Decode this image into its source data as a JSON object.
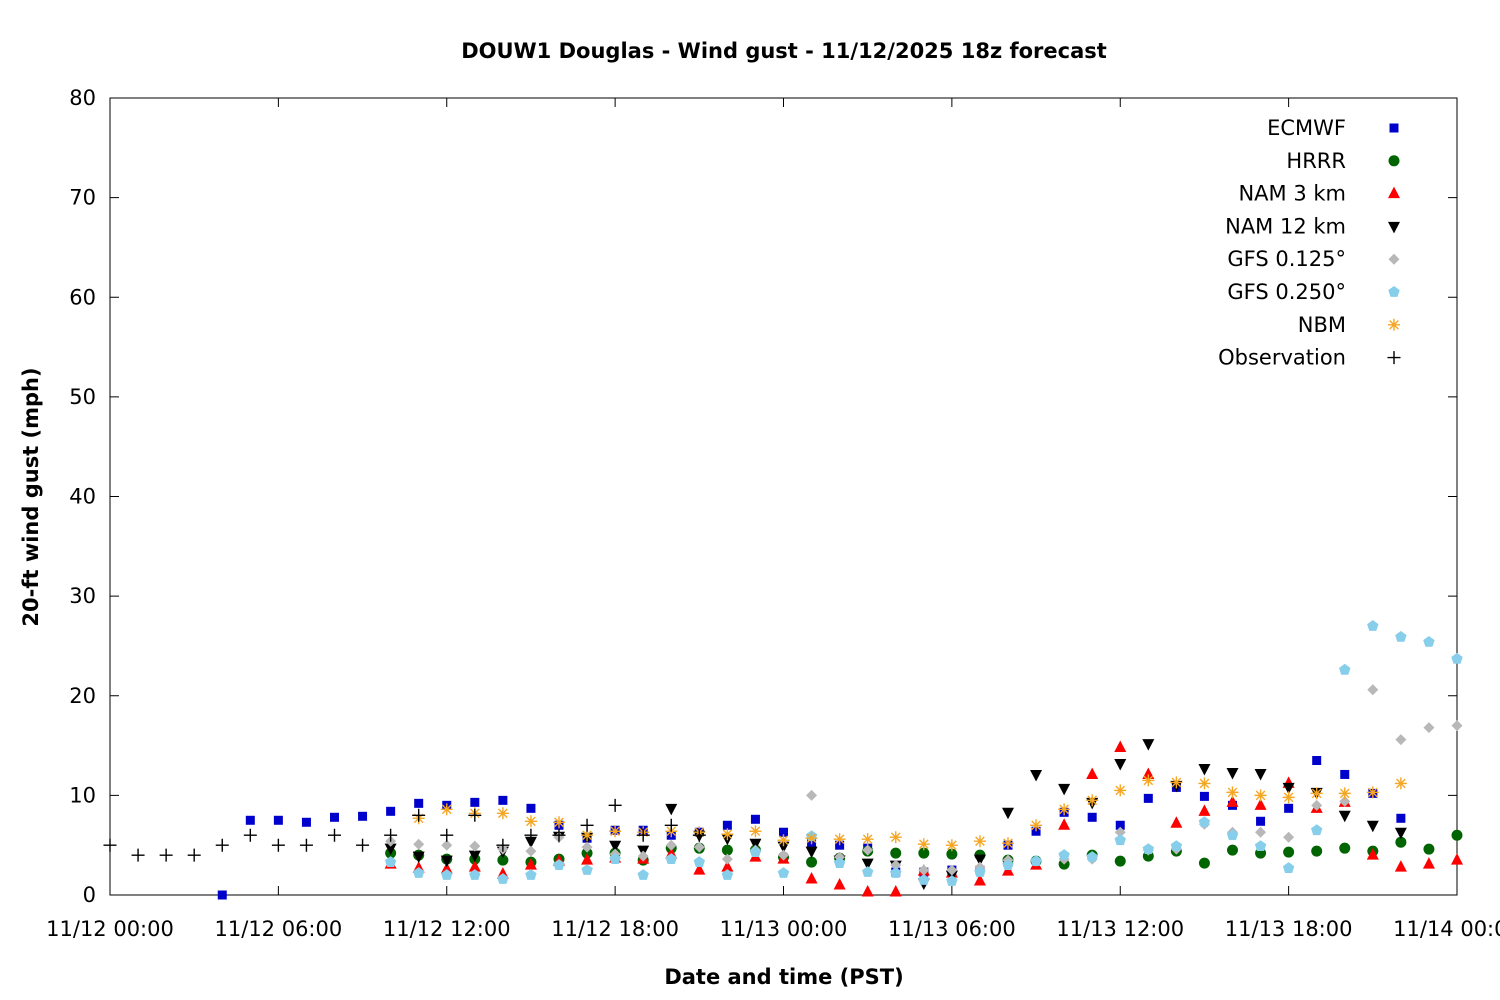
{
  "chart_data": {
    "type": "scatter",
    "title": "DOUW1 Douglas - Wind gust - 11/12/2025 18z forecast",
    "xlabel": "Date and time (PST)",
    "ylabel": "20-ft wind gust (mph)",
    "xlim": [
      "11/12 00:00",
      "11/14 00:00"
    ],
    "ylim": [
      0,
      80
    ],
    "x_ticks": [
      "11/12 00:00",
      "11/12 06:00",
      "11/12 12:00",
      "11/12 18:00",
      "11/13 00:00",
      "11/13 06:00",
      "11/13 12:00",
      "11/13 18:00",
      "11/14 00:00"
    ],
    "y_ticks": [
      0,
      10,
      20,
      30,
      40,
      50,
      60,
      70,
      80
    ],
    "grid": false,
    "legend_position": "top-right",
    "x_unit": "hours after 11/12 00:00 PST",
    "series": [
      {
        "name": "ECMWF",
        "marker": "square",
        "color": "#0000cc",
        "x": [
          4,
          5,
          6,
          7,
          8,
          9,
          10,
          11,
          12,
          13,
          14,
          15,
          16,
          17,
          18,
          19,
          20,
          21,
          22,
          23,
          24,
          25,
          26,
          27,
          28,
          29,
          30,
          31,
          32,
          33,
          34,
          35,
          36,
          37,
          38,
          39,
          40,
          41,
          42,
          43,
          44,
          45,
          46,
          47,
          48
        ],
        "y": [
          0.0,
          7.5,
          7.5,
          7.3,
          7.8,
          7.9,
          8.4,
          9.2,
          9.0,
          9.3,
          9.5,
          8.7,
          7.0,
          5.7,
          6.5,
          6.5,
          6.0,
          6.3,
          7.0,
          7.6,
          6.3,
          5.2,
          5.0,
          4.7,
          2.3,
          2.3,
          2.5,
          2.5,
          5.0,
          6.4,
          8.3,
          7.8,
          7.0,
          9.7,
          10.8,
          9.9,
          9.0,
          7.4,
          8.7,
          13.5,
          12.1,
          10.2,
          7.7,
          null,
          null
        ]
      },
      {
        "name": "HRRR",
        "marker": "circle",
        "color": "#006400",
        "x": [
          10,
          11,
          12,
          13,
          14,
          15,
          16,
          17,
          18,
          19,
          20,
          21,
          22,
          23,
          24,
          25,
          26,
          27,
          28,
          29,
          30,
          31,
          32,
          33,
          34,
          35,
          36,
          37,
          38,
          39,
          40,
          41,
          42,
          43,
          44,
          45,
          46,
          47,
          48
        ],
        "y": [
          4.2,
          4.0,
          3.6,
          3.6,
          3.5,
          3.3,
          3.6,
          4.2,
          4.2,
          3.5,
          4.7,
          4.7,
          4.5,
          4.5,
          3.8,
          3.3,
          3.7,
          4.4,
          4.2,
          4.2,
          4.1,
          4.0,
          3.5,
          3.4,
          3.1,
          4.0,
          3.4,
          3.9,
          4.4,
          3.2,
          4.5,
          4.2,
          4.3,
          4.4,
          4.7,
          4.4,
          5.3,
          4.6,
          6.0
        ]
      },
      {
        "name": "NAM 3 km",
        "marker": "triangle-up",
        "color": "#ff0000",
        "x": [
          10,
          11,
          12,
          13,
          14,
          15,
          16,
          17,
          18,
          19,
          20,
          21,
          22,
          23,
          24,
          25,
          26,
          27,
          28,
          29,
          30,
          31,
          32,
          33,
          34,
          35,
          36,
          37,
          38,
          39,
          40,
          41,
          42,
          43,
          44,
          45,
          46,
          47,
          48
        ],
        "y": [
          3.1,
          2.7,
          2.6,
          2.8,
          2.1,
          3.0,
          3.4,
          3.5,
          3.7,
          3.6,
          4.1,
          2.5,
          2.8,
          3.8,
          3.6,
          1.6,
          1.0,
          0.3,
          0.3,
          2.4,
          2.2,
          1.4,
          2.4,
          3.0,
          7.0,
          12.1,
          14.8,
          12.1,
          7.2,
          8.4,
          9.3,
          9.0,
          11.2,
          8.7,
          9.3,
          4.0,
          2.8,
          3.1,
          3.5
        ]
      },
      {
        "name": "NAM 12 km",
        "marker": "triangle-down",
        "color": "#000000",
        "x": [
          10,
          11,
          12,
          13,
          14,
          15,
          16,
          17,
          18,
          19,
          20,
          21,
          22,
          23,
          24,
          25,
          26,
          27,
          28,
          29,
          30,
          31,
          32,
          33,
          34,
          35,
          36,
          37,
          38,
          39,
          40,
          41,
          42,
          43,
          44,
          45,
          46,
          47,
          48
        ],
        "y": [
          4.7,
          3.9,
          3.5,
          4.0,
          4.4,
          5.4,
          5.9,
          5.8,
          5.0,
          4.5,
          8.7,
          6.0,
          5.7,
          5.2,
          4.9,
          4.4,
          3.5,
          3.2,
          3.0,
          1.2,
          2.0,
          3.6,
          8.3,
          12.1,
          10.7,
          9.3,
          13.2,
          15.2,
          11.0,
          12.7,
          12.3,
          12.2,
          10.8,
          10.3,
          8.0,
          7.0,
          6.3,
          null,
          null
        ]
      },
      {
        "name": "GFS 0.125°",
        "marker": "diamond",
        "color": "#b8b8b8",
        "x": [
          10,
          11,
          12,
          13,
          14,
          15,
          16,
          17,
          18,
          19,
          20,
          21,
          22,
          23,
          24,
          25,
          26,
          27,
          28,
          29,
          30,
          31,
          32,
          33,
          34,
          35,
          36,
          37,
          38,
          39,
          40,
          41,
          42,
          43,
          44,
          45,
          46,
          47,
          48
        ],
        "y": [
          5.4,
          5.1,
          5.0,
          4.9,
          4.6,
          4.4,
          5.8,
          4.8,
          4.1,
          3.9,
          5.0,
          4.8,
          3.6,
          4.5,
          4.0,
          10.0,
          3.8,
          4.5,
          3.0,
          2.5,
          2.5,
          2.8,
          3.5,
          3.4,
          3.6,
          3.6,
          6.3,
          4.5,
          4.6,
          7.1,
          6.3,
          6.3,
          5.8,
          9.0,
          9.4,
          20.6,
          15.6,
          16.8,
          17.0
        ]
      },
      {
        "name": "GFS 0.250°",
        "marker": "pentagon",
        "color": "#87ceeb",
        "x": [
          10,
          11,
          12,
          13,
          14,
          15,
          16,
          17,
          18,
          19,
          20,
          21,
          22,
          23,
          24,
          25,
          26,
          27,
          28,
          29,
          30,
          31,
          32,
          33,
          34,
          35,
          36,
          37,
          38,
          39,
          40,
          41,
          42,
          43,
          44,
          45,
          46,
          47,
          48
        ],
        "y": [
          3.3,
          2.2,
          2.0,
          2.0,
          1.6,
          2.0,
          3.0,
          2.5,
          3.6,
          2.0,
          3.6,
          3.3,
          2.0,
          4.3,
          2.2,
          5.9,
          3.2,
          2.3,
          2.2,
          1.5,
          1.4,
          2.3,
          3.0,
          3.4,
          4.0,
          3.8,
          5.5,
          4.6,
          4.9,
          7.3,
          6.0,
          4.9,
          2.7,
          6.5,
          22.6,
          27.0,
          25.9,
          25.4,
          23.7
        ]
      },
      {
        "name": "NBM",
        "marker": "star",
        "color": "#f5a623",
        "x": [
          11,
          12,
          13,
          14,
          15,
          16,
          17,
          18,
          19,
          20,
          21,
          22,
          23,
          24,
          25,
          26,
          27,
          28,
          29,
          30,
          31,
          32,
          33,
          34,
          35,
          36,
          37,
          38,
          39,
          40,
          41,
          42,
          43,
          44,
          45,
          46
        ],
        "y": [
          7.7,
          8.6,
          8.2,
          8.2,
          7.4,
          7.3,
          6.0,
          6.4,
          6.3,
          6.4,
          6.3,
          6.1,
          6.4,
          5.5,
          5.7,
          5.6,
          5.6,
          5.8,
          5.1,
          5.0,
          5.4,
          5.2,
          7.0,
          8.6,
          9.5,
          10.5,
          11.5,
          11.3,
          11.2,
          10.3,
          10.0,
          9.8,
          10.2,
          10.2,
          10.3,
          11.2
        ]
      },
      {
        "name": "Observation",
        "marker": "plus",
        "color": "#000000",
        "x": [
          0,
          1,
          2,
          3,
          4,
          5,
          6,
          7,
          8,
          9,
          10,
          11,
          12,
          13,
          14,
          15,
          16,
          17,
          18,
          19,
          20,
          21,
          22
        ],
        "y": [
          5.0,
          4.0,
          4.0,
          4.0,
          5.0,
          6.0,
          5.0,
          5.0,
          6.0,
          5.0,
          6.0,
          8.0,
          6.0,
          8.0,
          5.0,
          6.0,
          6.0,
          7.0,
          9.0,
          6.0,
          7.0,
          6.0,
          null
        ]
      }
    ]
  }
}
